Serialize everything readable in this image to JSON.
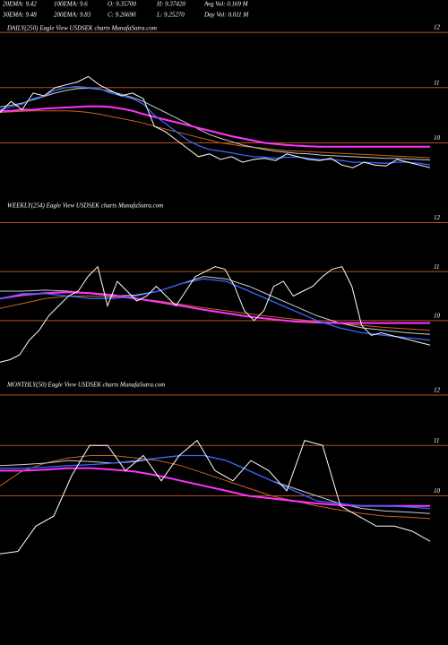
{
  "header": {
    "rows": [
      [
        "20EMA: 9.42",
        "100EMA: 9.6",
        "O: 9.35700",
        "H: 9.37420",
        "Avg Vol: 0.169 M"
      ],
      [
        "30EMA: 9.48",
        "200EMA: 9.83",
        "C: 9.26690",
        "L: 9.25270",
        "Day Vol: 0.011 M"
      ]
    ]
  },
  "chart_data": [
    {
      "type": "line",
      "title": "DAILY(250) Eagle  View  USDSEK charts MunafaSutra.com",
      "ylim": [
        9.1,
        12.05
      ],
      "yticks": [
        10,
        11,
        12
      ],
      "grid": true,
      "grid_color": "#b4501e",
      "series": [
        {
          "color": "#c8641e",
          "values": [
            10.55,
            10.56,
            10.57,
            10.58,
            10.58,
            10.58,
            10.58,
            10.57,
            10.55,
            10.52,
            10.48,
            10.44,
            10.4,
            10.36,
            10.3,
            10.25,
            10.2,
            10.15,
            10.1,
            10.05,
            10.0,
            9.97,
            9.94,
            9.92,
            9.9,
            9.88,
            9.86,
            9.85,
            9.84,
            9.83,
            9.82,
            9.81,
            9.8,
            9.79,
            9.78,
            9.77,
            9.76,
            9.75,
            9.74,
            9.73
          ]
        },
        {
          "color": "#cccccc",
          "values": [
            10.65,
            10.68,
            10.72,
            10.78,
            10.84,
            10.9,
            10.95,
            10.98,
            10.99,
            10.97,
            10.93,
            10.88,
            10.82,
            10.75,
            10.65,
            10.55,
            10.45,
            10.35,
            10.25,
            10.15,
            10.08,
            10.02,
            9.96,
            9.92,
            9.88,
            9.85,
            9.83,
            9.81,
            9.8,
            9.78,
            9.77,
            9.76,
            9.75,
            9.74,
            9.73,
            9.72,
            9.72,
            9.71,
            9.7,
            9.69
          ]
        },
        {
          "color": "#ff33ff",
          "values": [
            10.58,
            10.58,
            10.6,
            10.6,
            10.62,
            10.63,
            10.64,
            10.65,
            10.66,
            10.66,
            10.65,
            10.62,
            10.58,
            10.52,
            10.47,
            10.42,
            10.37,
            10.32,
            10.27,
            10.22,
            10.17,
            10.12,
            10.08,
            10.04,
            10.0,
            9.98,
            9.96,
            9.95,
            9.94,
            9.93,
            9.93,
            9.93,
            9.93,
            9.93,
            9.93,
            9.93,
            9.93,
            9.93,
            9.93,
            9.93
          ]
        },
        {
          "color": "#3366ff",
          "values": [
            10.6,
            10.65,
            10.7,
            10.8,
            10.85,
            10.95,
            11.0,
            11.02,
            11.0,
            10.98,
            10.9,
            10.85,
            10.8,
            10.7,
            10.5,
            10.35,
            10.2,
            10.05,
            9.95,
            9.88,
            9.85,
            9.82,
            9.78,
            9.75,
            9.74,
            9.72,
            9.74,
            9.74,
            9.72,
            9.7,
            9.7,
            9.68,
            9.65,
            9.65,
            9.64,
            9.63,
            9.65,
            9.65,
            9.63,
            9.6
          ]
        },
        {
          "color": "#ffffff",
          "values": [
            10.55,
            10.75,
            10.6,
            10.9,
            10.85,
            11.0,
            11.05,
            11.1,
            11.2,
            11.05,
            10.95,
            10.85,
            10.9,
            10.8,
            10.3,
            10.2,
            10.05,
            9.9,
            9.75,
            9.8,
            9.7,
            9.75,
            9.65,
            9.7,
            9.72,
            9.68,
            9.8,
            9.75,
            9.7,
            9.68,
            9.72,
            9.6,
            9.55,
            9.65,
            9.6,
            9.58,
            9.7,
            9.65,
            9.6,
            9.55
          ]
        }
      ]
    },
    {
      "type": "line",
      "title": "WEEKLY(254) Eagle  View  USDSEK charts MunafaSutra.com",
      "ylim": [
        8.9,
        12.1
      ],
      "yticks": [
        10,
        11,
        12
      ],
      "grid": true,
      "grid_color": "#b4501e",
      "series": [
        {
          "color": "#c8641e",
          "values": [
            10.25,
            10.35,
            10.45,
            10.5,
            10.5,
            10.48,
            10.45,
            10.4,
            10.33,
            10.26,
            10.2,
            10.14,
            10.08,
            10.03,
            9.98,
            9.94,
            9.9,
            9.86,
            9.83,
            9.8
          ]
        },
        {
          "color": "#cccccc",
          "values": [
            10.6,
            10.6,
            10.62,
            10.6,
            10.55,
            10.5,
            10.52,
            10.6,
            10.75,
            10.9,
            10.85,
            10.7,
            10.5,
            10.3,
            10.1,
            9.95,
            9.85,
            9.8,
            9.75,
            9.72
          ]
        },
        {
          "color": "#ff33ff",
          "values": [
            10.45,
            10.52,
            10.56,
            10.58,
            10.56,
            10.52,
            10.45,
            10.38,
            10.3,
            10.22,
            10.15,
            10.08,
            10.03,
            9.98,
            9.96,
            9.95,
            9.95,
            9.95,
            9.95,
            9.95
          ]
        },
        {
          "color": "#3366ff",
          "values": [
            10.45,
            10.55,
            10.55,
            10.5,
            10.45,
            10.45,
            10.5,
            10.6,
            10.75,
            10.85,
            10.8,
            10.6,
            10.4,
            10.2,
            10.0,
            9.85,
            9.75,
            9.7,
            9.65,
            9.6
          ]
        },
        {
          "color": "#ffffff",
          "values": [
            9.15,
            9.2,
            9.3,
            9.6,
            9.8,
            10.1,
            10.3,
            10.5,
            10.6,
            10.9,
            11.1,
            10.3,
            10.8,
            10.6,
            10.4,
            10.5,
            10.7,
            10.5,
            10.3,
            10.6,
            10.9,
            11.0,
            11.1,
            11.05,
            10.7,
            10.2,
            10.0,
            10.2,
            10.7,
            10.8,
            10.5,
            10.6,
            10.7,
            10.9,
            11.05,
            11.1,
            10.7,
            9.9,
            9.7,
            9.75,
            9.7,
            9.65,
            9.6,
            9.55,
            9.5
          ]
        }
      ]
    },
    {
      "type": "line",
      "title": "MONTHLY(50) Eagle  View  USDSEK charts MunafaSutra.com",
      "ylim": [
        8.82,
        12.07
      ],
      "yticks": [
        10,
        11,
        12
      ],
      "grid": true,
      "grid_color": "#b4501e",
      "series": [
        {
          "color": "#c8641e",
          "values": [
            10.2,
            10.5,
            10.65,
            10.75,
            10.8,
            10.8,
            10.75,
            10.7,
            10.6,
            10.45,
            10.3,
            10.15,
            10.0,
            9.9,
            9.8,
            9.72,
            9.65,
            9.6,
            9.58,
            9.55
          ]
        },
        {
          "color": "#cccccc",
          "values": [
            10.6,
            10.62,
            10.65,
            10.7,
            10.68,
            10.65,
            10.68,
            10.75,
            10.8,
            10.8,
            10.7,
            10.5,
            10.3,
            10.15,
            10.0,
            9.85,
            9.75,
            9.7,
            9.68,
            9.65
          ]
        },
        {
          "color": "#ff33ff",
          "values": [
            10.5,
            10.5,
            10.52,
            10.55,
            10.55,
            10.52,
            10.48,
            10.4,
            10.3,
            10.2,
            10.1,
            10.0,
            9.95,
            9.9,
            9.85,
            9.82,
            9.8,
            9.8,
            9.8,
            9.8
          ]
        },
        {
          "color": "#3366ff",
          "values": [
            10.55,
            10.55,
            10.57,
            10.6,
            10.62,
            10.65,
            10.7,
            10.75,
            10.8,
            10.8,
            10.7,
            10.5,
            10.3,
            10.1,
            9.9,
            9.85,
            9.8,
            9.8,
            9.78,
            9.75
          ]
        },
        {
          "color": "#ffffff",
          "values": [
            8.85,
            8.9,
            9.4,
            9.6,
            10.4,
            11.0,
            11.0,
            10.5,
            10.8,
            10.3,
            10.8,
            11.1,
            10.5,
            10.3,
            10.7,
            10.5,
            10.1,
            11.1,
            11.0,
            9.8,
            9.6,
            9.4,
            9.4,
            9.3,
            9.1
          ]
        }
      ]
    }
  ]
}
